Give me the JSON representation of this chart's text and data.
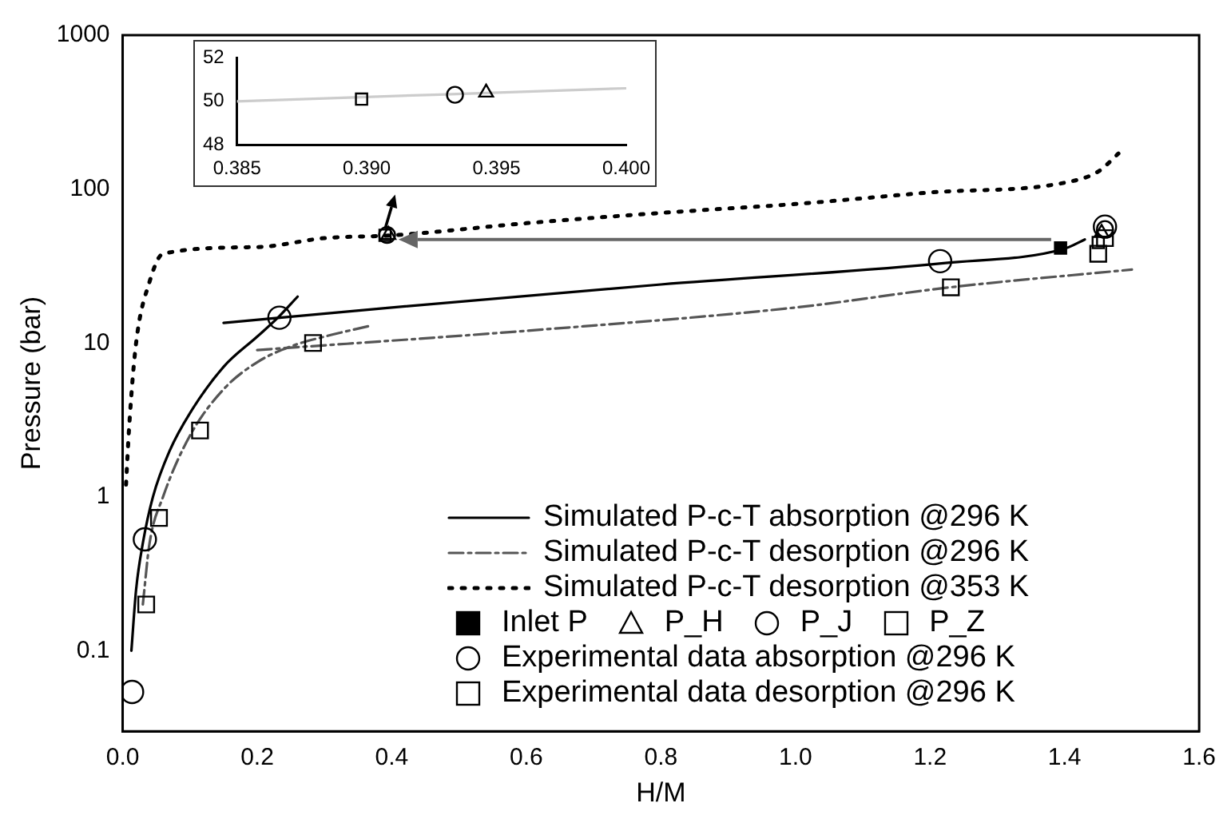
{
  "chart_data": [
    {
      "type": "line",
      "xlabel": "H/M",
      "ylabel": "Pressure (bar)",
      "log": "y",
      "grid": false,
      "legend": "bottom right",
      "xlim": [
        0,
        1.6
      ],
      "xticks": [
        {
          "value": 0,
          "label": "0.0"
        },
        0.2,
        0.4,
        0.6,
        0.8,
        {
          "value": 1,
          "label": "1.0"
        },
        1.2,
        1.4,
        1.6
      ],
      "ylim": [
        0.03,
        1000
      ],
      "yticks": [
        0.1,
        1,
        10,
        100,
        1000
      ],
      "series": [
        {
          "name": "Simulated P-c-T absorption @296 K",
          "color": "#000000",
          "line_style": "solid",
          "marker": "none",
          "x": [
            0.013,
            0.02,
            0.03,
            0.045,
            0.07,
            0.1,
            0.15,
            0.2,
            0.23,
            0.26
          ],
          "values": [
            0.1,
            0.25,
            0.5,
            1,
            2,
            3.5,
            7,
            11,
            14.5,
            20
          ]
        },
        {
          "color": "#000000",
          "line_style": "solid",
          "marker": "none",
          "x": [
            0.15,
            0.4,
            0.8,
            1.22,
            1.4,
            1.43
          ],
          "values": [
            13.5,
            17,
            24,
            33,
            41,
            47
          ]
        },
        {
          "name": "Simulated P-c-T desorption @296 K",
          "color": "#555555",
          "line_style": "dashed",
          "marker": "none",
          "x": [
            0.03,
            0.04,
            0.06,
            0.1,
            0.15,
            0.2,
            0.25,
            0.3,
            0.37
          ],
          "values": [
            0.2,
            0.5,
            1,
            2.5,
            5,
            7.5,
            9.5,
            11,
            13
          ]
        },
        {
          "color": "#555555",
          "line_style": "dashed",
          "marker": "none",
          "x": [
            0.2,
            0.6,
            1.0,
            1.23,
            1.5
          ],
          "values": [
            9,
            12,
            17,
            23,
            30
          ]
        },
        {
          "name": "Simulated P-c-T desorption @353 K",
          "color": "#000000",
          "line_style": "dotted",
          "marker": "none",
          "x": [
            0.005,
            0.01,
            0.02,
            0.04,
            0.06,
            0.2,
            0.3,
            0.4,
            0.6,
            0.8,
            1.0,
            1.2,
            1.4,
            1.45,
            1.48
          ],
          "values": [
            1.2,
            3,
            10,
            25,
            38,
            42,
            48,
            50,
            60,
            70,
            80,
            95,
            110,
            130,
            170
          ]
        },
        {
          "name": "Inlet P",
          "type": "scatter",
          "color": "#000000",
          "marker": "square",
          "x": [
            1.394
          ],
          "values": [
            41.4
          ]
        },
        {
          "name": "P_H",
          "type": "scatter",
          "color": "#000000",
          "marker": "triangle",
          "x": [
            0.395,
            1.455
          ],
          "values": [
            50.4,
            52
          ]
        },
        {
          "name": "P_J",
          "type": "scatter",
          "color": "#000000",
          "marker": "circle",
          "x": [
            0.393,
            1.46
          ],
          "values": [
            50.3,
            55
          ]
        },
        {
          "name": "P_Z",
          "type": "scatter",
          "color": "#000000",
          "marker": "square",
          "x": [
            0.39,
            1.45
          ],
          "values": [
            50.1,
            45
          ]
        },
        {
          "name": "Experimental data absorption @296 K",
          "type": "scatter",
          "color": "#000000",
          "marker": "circle",
          "x": [
            0.014,
            0.033,
            0.233,
            1.215,
            1.46
          ],
          "values": [
            0.054,
            0.53,
            14.6,
            34,
            57
          ]
        },
        {
          "name": "Experimental data desorption @296 K",
          "type": "scatter",
          "color": "#000000",
          "marker": "square",
          "x": [
            0.035,
            0.054,
            0.115,
            0.283,
            1.231,
            1.45,
            1.46
          ],
          "values": [
            0.2,
            0.73,
            2.7,
            10,
            23,
            38,
            48
          ]
        }
      ]
    },
    {
      "type": "scatter",
      "grid": false,
      "legend": false,
      "xlim": [
        0.385,
        0.4
      ],
      "xticks": [
        {
          "value": 0.385,
          "label": "0.385"
        },
        {
          "value": 0.39,
          "label": "0.390"
        },
        {
          "value": 0.395,
          "label": "0.395"
        },
        {
          "value": 0.4,
          "label": "0.400"
        }
      ],
      "ylim": [
        48,
        52
      ],
      "yticks": [
        48,
        50,
        52
      ],
      "series": [
        {
          "type": "line",
          "color": "#cccccc",
          "line_style": "solid",
          "marker": "none",
          "x": [
            0.385,
            0.4
          ],
          "values": [
            50.0,
            50.6
          ]
        },
        {
          "color": "#000000",
          "marker": "square",
          "x": [
            0.3898
          ],
          "values": [
            50.1
          ]
        },
        {
          "color": "#000000",
          "marker": "circle",
          "x": [
            0.3934
          ],
          "values": [
            50.3
          ]
        },
        {
          "color": "#000000",
          "marker": "triangle",
          "x": [
            0.3946
          ],
          "values": [
            50.4
          ]
        }
      ]
    }
  ]
}
